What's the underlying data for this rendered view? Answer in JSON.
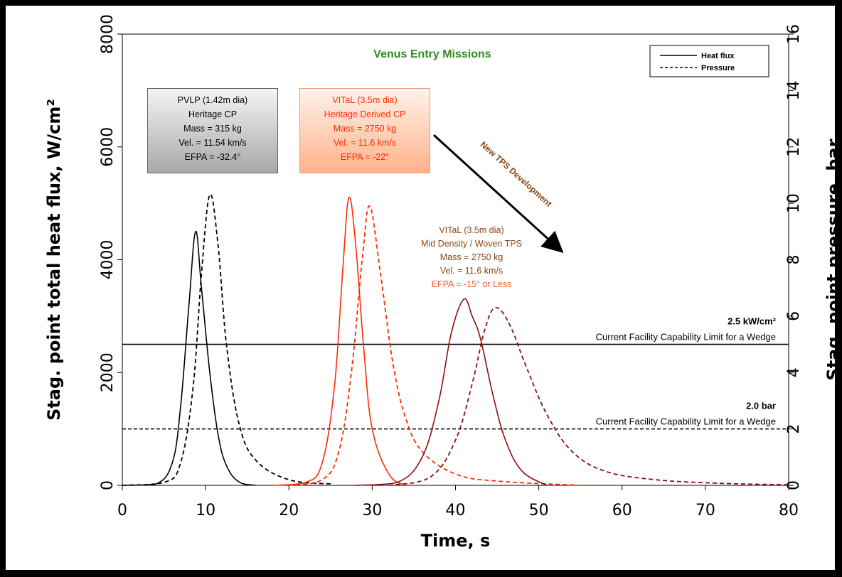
{
  "chart_data": {
    "type": "line",
    "title": "Venus Entry Missions",
    "xlabel": "Time, s",
    "ylabel_left": "Stag. point total heat flux, W/cm²",
    "ylabel_right": "Stag. point pressure, bar",
    "xlim": [
      0,
      80
    ],
    "ylim_left": [
      0,
      8000
    ],
    "ylim_right": [
      0,
      16
    ],
    "x_ticks": [
      "0",
      "10",
      "20",
      "30",
      "40",
      "50",
      "60",
      "70",
      "80"
    ],
    "y_left_ticks": [
      "0",
      "2000",
      "4000",
      "6000",
      "8000"
    ],
    "y_right_ticks": [
      "0",
      "2",
      "4",
      "6",
      "8",
      "10",
      "12",
      "14",
      "16"
    ],
    "legend": {
      "position": "top-right",
      "entries": [
        {
          "label": "Heat flux",
          "style": "solid"
        },
        {
          "label": "Pressure",
          "style": "dashed"
        }
      ]
    },
    "series": [
      {
        "mission": "PVLP",
        "quantity": "heat flux",
        "axis": "left",
        "color": "#000000",
        "style": "solid",
        "peak_x": 8.8,
        "peak_y": 4500,
        "x": [
          0,
          4,
          6,
          7,
          8,
          8.8,
          9.5,
          10.5,
          11.5,
          12.5,
          14,
          16
        ],
        "values": [
          0,
          20,
          400,
          1400,
          3200,
          4500,
          3500,
          2000,
          900,
          350,
          60,
          0
        ]
      },
      {
        "mission": "PVLP",
        "quantity": "pressure",
        "axis": "right",
        "color": "#000000",
        "style": "dashed",
        "peak_x": 10.5,
        "peak_y": 10.3,
        "x": [
          0,
          5,
          7,
          8.5,
          9.5,
          10.5,
          11.5,
          12.5,
          14,
          16,
          20,
          25
        ],
        "values": [
          0,
          0.1,
          0.8,
          3.5,
          7.5,
          10.3,
          8.5,
          5,
          2.2,
          0.9,
          0.2,
          0.05
        ]
      },
      {
        "mission": "VITaL Heritage Derived CP",
        "quantity": "heat flux",
        "axis": "left",
        "color": "#ff2a00",
        "style": "solid",
        "peak_x": 27.2,
        "peak_y": 5100,
        "x": [
          18,
          22,
          24,
          25.5,
          26.5,
          27.2,
          28,
          29,
          30,
          32,
          34
        ],
        "values": [
          0,
          50,
          400,
          1800,
          3900,
          5100,
          4300,
          2400,
          1000,
          200,
          0
        ]
      },
      {
        "mission": "VITaL Heritage Derived CP",
        "quantity": "pressure",
        "axis": "right",
        "color": "#ff2a00",
        "style": "dashed",
        "peak_x": 29.7,
        "peak_y": 9.9,
        "x": [
          20,
          24,
          26,
          27.5,
          28.8,
          29.7,
          31,
          32.5,
          34,
          36,
          40,
          45,
          55
        ],
        "values": [
          0,
          0.2,
          1.2,
          4,
          8,
          9.9,
          7.5,
          4.3,
          2.4,
          1.2,
          0.4,
          0.15,
          0
        ]
      },
      {
        "mission": "VITaL Mid Density / Woven TPS",
        "quantity": "heat flux",
        "axis": "left",
        "color": "#8b1010",
        "style": "solid",
        "peak_x": 41,
        "peak_y": 3300,
        "x": [
          28,
          33,
          36,
          38,
          39.5,
          41,
          42,
          43,
          44.5,
          46,
          48,
          51
        ],
        "values": [
          0,
          50,
          500,
          1500,
          2700,
          3300,
          3000,
          2600,
          1600,
          800,
          250,
          0
        ]
      },
      {
        "mission": "VITaL Mid Density / Woven TPS",
        "quantity": "pressure",
        "axis": "right",
        "color": "#8b1010",
        "style": "dashed",
        "peak_x": 44.8,
        "peak_y": 6.3,
        "x": [
          32,
          37,
          40,
          42,
          43.5,
          44.8,
          46.5,
          48.5,
          51,
          54,
          58,
          64,
          72,
          80
        ],
        "values": [
          0,
          0.3,
          1.6,
          3.6,
          5.5,
          6.3,
          5.7,
          4.2,
          2.5,
          1.2,
          0.5,
          0.2,
          0.07,
          0.02
        ]
      }
    ],
    "reference_lines": [
      {
        "axis": "left",
        "value": 2500,
        "style": "solid",
        "label_bold": "2.5 kW/cm²",
        "label": "Current Facility Capability Limit for a Wedge"
      },
      {
        "axis": "right",
        "value": 2,
        "style": "dashed",
        "label_bold": "2.0 bar",
        "label": "Current Facility Capability Limit for a Wedge"
      }
    ],
    "arrow_label": "New TPS Development",
    "annotation_boxes": [
      {
        "id": "pvlp",
        "lines": [
          "PVLP (1.42m dia)",
          "Heritage CP",
          "Mass = 315 kg",
          "Vel. = 11.54 km/s",
          "EFPA = -32.4°"
        ]
      },
      {
        "id": "vital-cp",
        "lines": [
          "VITaL (3.5m dia)",
          "Heritage Derived CP",
          "Mass = 2750 kg",
          "Vel. = 11.6 km/s",
          "EFPA = -22°"
        ]
      },
      {
        "id": "vital-woven",
        "lines": [
          "VITaL (3.5m dia)",
          "Mid Density / Woven TPS",
          "Mass = 2750 kg",
          "Vel. = 11.6 km/s",
          "EFPA = -15° or Less"
        ]
      }
    ],
    "colors": {
      "title": "#2e8b1e",
      "pvlp": "#000000",
      "vital_cp": "#ff2a00",
      "vital_woven": "#8b1010",
      "vital_woven_text": "#8b4513",
      "pvlp_box": "#b3b3b3",
      "vital_cp_box": "#ffb890"
    }
  }
}
